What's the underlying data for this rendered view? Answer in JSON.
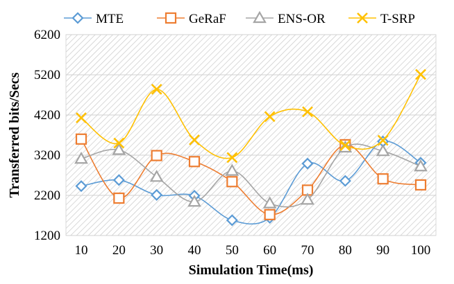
{
  "chart_data": {
    "type": "line",
    "title": "",
    "xlabel": "Simulation Time(ms)",
    "ylabel": "Transferred bits/Secs",
    "categories": [
      "10",
      "20",
      "30",
      "40",
      "50",
      "60",
      "70",
      "80",
      "90",
      "100"
    ],
    "x": [
      10,
      20,
      30,
      40,
      50,
      60,
      70,
      80,
      90,
      100
    ],
    "ylim": [
      1200,
      6200
    ],
    "yticks": [
      1200,
      2200,
      3200,
      4200,
      5200,
      6200
    ],
    "grid": true,
    "background_pattern": "diagonal-hatch",
    "smooth": true,
    "legend_position": "top",
    "series": [
      {
        "name": "MTE",
        "color": "#5B9BD5",
        "marker": "diamond",
        "values": [
          2430,
          2580,
          2210,
          2190,
          1580,
          1640,
          2990,
          2560,
          3540,
          3010
        ]
      },
      {
        "name": "GeRaF",
        "color": "#ED7D31",
        "marker": "square",
        "values": [
          3600,
          2130,
          3190,
          3040,
          2540,
          1720,
          2330,
          3460,
          2610,
          2460
        ]
      },
      {
        "name": "ENS-OR",
        "color": "#A5A5A5",
        "marker": "triangle",
        "values": [
          3110,
          3330,
          2660,
          2040,
          2810,
          2000,
          2090,
          3390,
          3300,
          2920
        ]
      },
      {
        "name": "T-SRP",
        "color": "#FFC000",
        "marker": "x",
        "values": [
          4130,
          3500,
          4840,
          3580,
          3140,
          4160,
          4280,
          3440,
          3570,
          5210
        ]
      }
    ]
  }
}
